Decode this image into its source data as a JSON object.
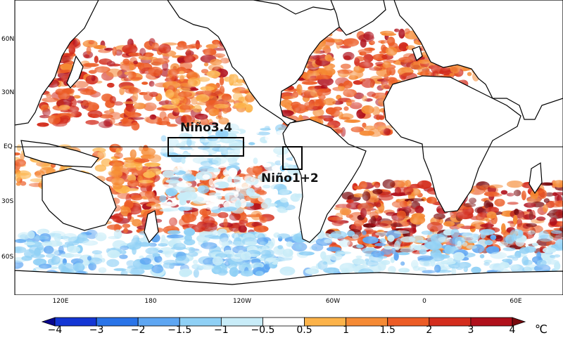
{
  "map": {
    "lat_labels": [
      "60N",
      "30N",
      "EQ",
      "30S",
      "60S"
    ],
    "lon_labels": [
      "120E",
      "180",
      "120W",
      "60W",
      "0",
      "60E"
    ],
    "regions": [
      {
        "name": "Niño3.4",
        "lon_range": "170W-120W",
        "lat_range": "5S-5N"
      },
      {
        "name": "Niño1+2",
        "lon_range": "90W-80W",
        "lat_range": "10S-0"
      }
    ],
    "colors": {
      "ocean_neutral": "#ffffff",
      "land": "#ffffff",
      "coast": "#000000"
    }
  },
  "colorbar": {
    "unit": "℃",
    "tick_labels": [
      "−4",
      "−3",
      "−2",
      "−1.5",
      "−1",
      "−0.5",
      "0.5",
      "1",
      "1.5",
      "2",
      "3",
      "4"
    ],
    "colors": [
      "#08068f",
      "#1436d4",
      "#2a74e8",
      "#5ea6f2",
      "#8fd0f5",
      "#c8ecf8",
      "#ffffff",
      "#fcb34a",
      "#f58a34",
      "#ec5c26",
      "#d32d1d",
      "#b0101b",
      "#7a0a0e"
    ]
  }
}
